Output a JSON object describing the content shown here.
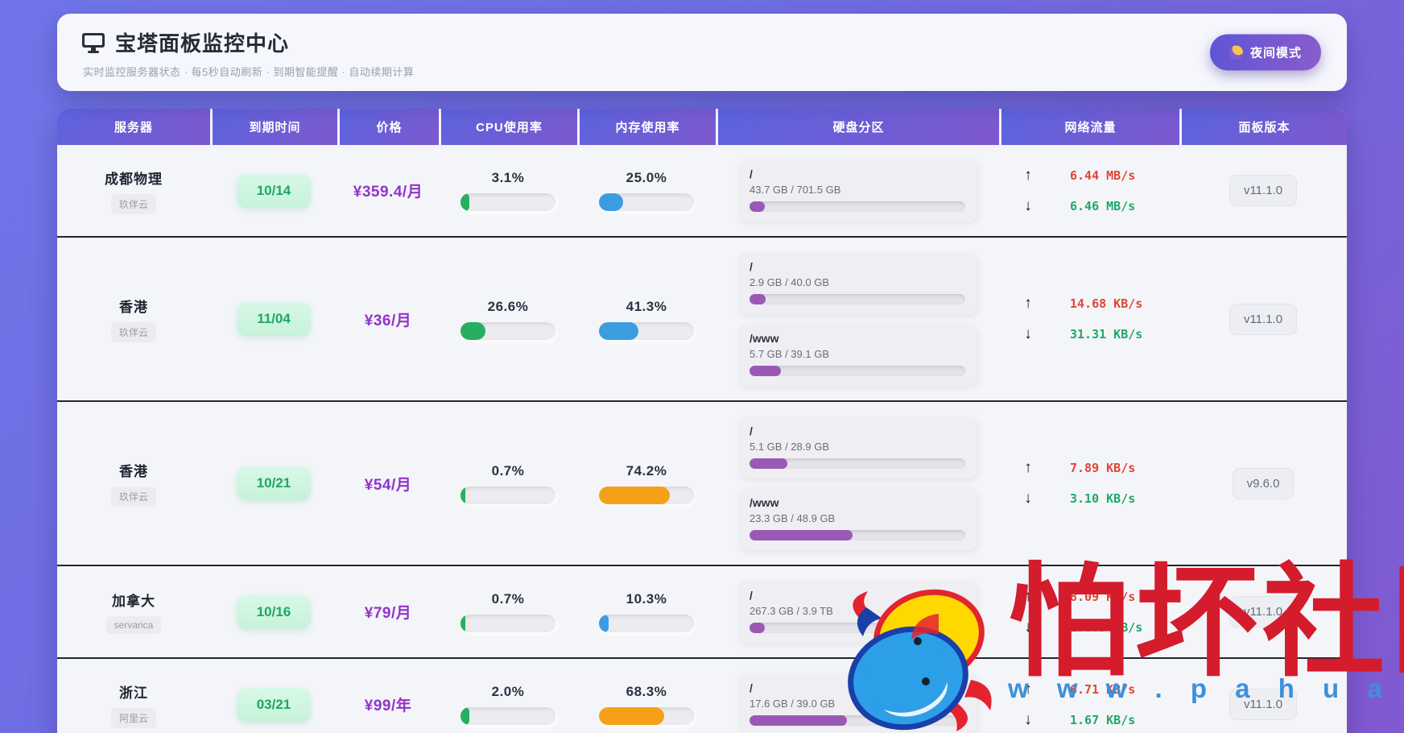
{
  "header": {
    "title": "宝塔面板监控中心",
    "subtitle": "实时监控服务器状态 · 每5秒自动刷新 · 到期智能提醒 · 自动续期计算",
    "night_mode_label": "夜间模式"
  },
  "icons": {
    "up_arrow": "↑",
    "down_arrow": "↓",
    "moon": "moon-icon",
    "monitor": "monitor-icon"
  },
  "table": {
    "columns": [
      "服务器",
      "到期时间",
      "价格",
      "CPU使用率",
      "内存使用率",
      "硬盘分区",
      "网络流量",
      "面板版本"
    ]
  },
  "servers": [
    {
      "name": "成都物理",
      "provider": "玖伴云",
      "expiry": "10/14",
      "price": "¥359.4/月",
      "cpu_label": "3.1%",
      "cpu_pct": 3.1,
      "mem_label": "25.0%",
      "mem_pct": 25.0,
      "mem_color": "blue",
      "disks": [
        {
          "mount": "/",
          "usage": "43.7 GB / 701.5 GB",
          "pct": 6.2
        }
      ],
      "net_up": "6.44 MB/s",
      "net_down": "6.46 MB/s",
      "version": "v11.1.0"
    },
    {
      "name": "香港",
      "provider": "玖伴云",
      "expiry": "11/04",
      "price": "¥36/月",
      "cpu_label": "26.6%",
      "cpu_pct": 26.6,
      "mem_label": "41.3%",
      "mem_pct": 41.3,
      "mem_color": "blue",
      "disks": [
        {
          "mount": "/",
          "usage": "2.9 GB / 40.0 GB",
          "pct": 7.3
        },
        {
          "mount": "/www",
          "usage": "5.7 GB / 39.1 GB",
          "pct": 14.6
        }
      ],
      "net_up": "14.68 KB/s",
      "net_down": "31.31 KB/s",
      "version": "v11.1.0"
    },
    {
      "name": "香港",
      "provider": "玖伴云",
      "expiry": "10/21",
      "price": "¥54/月",
      "cpu_label": "0.7%",
      "cpu_pct": 0.7,
      "mem_label": "74.2%",
      "mem_pct": 74.2,
      "mem_color": "orange",
      "disks": [
        {
          "mount": "/",
          "usage": "5.1 GB / 28.9 GB",
          "pct": 17.6
        },
        {
          "mount": "/www",
          "usage": "23.3 GB / 48.9 GB",
          "pct": 47.7
        }
      ],
      "net_up": "7.89 KB/s",
      "net_down": "3.10 KB/s",
      "version": "v9.6.0"
    },
    {
      "name": "加拿大",
      "provider": "servarica",
      "expiry": "10/16",
      "price": "¥79/月",
      "cpu_label": "0.7%",
      "cpu_pct": 0.7,
      "mem_label": "10.3%",
      "mem_pct": 10.3,
      "mem_color": "blue",
      "disks": [
        {
          "mount": "/",
          "usage": "267.3 GB / 3.9 TB",
          "pct": 6.7
        }
      ],
      "net_up": "8.09 KB/s",
      "net_down": "15.83 KB/s",
      "version": "v11.1.0"
    },
    {
      "name": "浙江",
      "provider": "阿里云",
      "expiry": "03/21",
      "price": "¥99/年",
      "cpu_label": "2.0%",
      "cpu_pct": 2.0,
      "mem_label": "68.3%",
      "mem_pct": 68.3,
      "mem_color": "orange",
      "disks": [
        {
          "mount": "/",
          "usage": "17.6 GB / 39.0 GB",
          "pct": 45.1
        }
      ],
      "net_up": "6.71 KB/s",
      "net_down": "1.67 KB/s",
      "version": "v11.1.0"
    }
  ],
  "colors": {
    "cpu_bar": "#27ae60",
    "mem_blue": "#3b9de0",
    "mem_orange": "#f5a118",
    "disk_bar": "#9b59b6",
    "up_speed": "#df4637",
    "down_speed": "#1fa868",
    "price": "#9233c9",
    "expiry_text": "#1ea765",
    "header_gradient_start": "#5c64de",
    "header_gradient_end": "#7e58cf"
  },
  "watermark": {
    "text": "怕坏社区",
    "url": "w w w . p a h u a i . c o m"
  }
}
